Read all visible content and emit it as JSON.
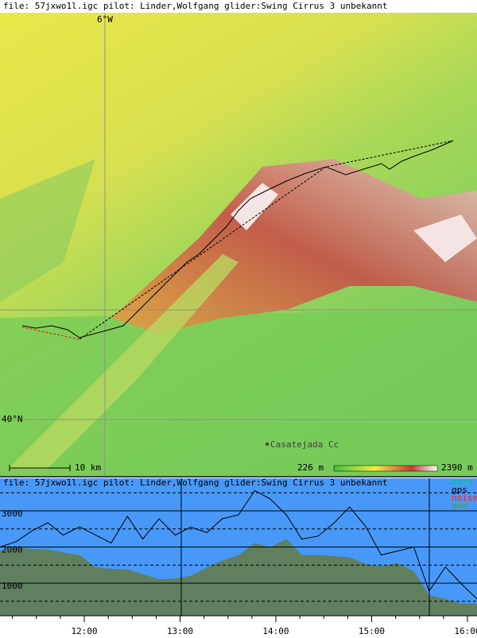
{
  "header": {
    "text": "file: 57jxwo1l.igc  pilot: Linder,Wolfgang glider:Swing Cirrus 3 unbekannt"
  },
  "map": {
    "lon_label": "6°W",
    "lat_label": "40°N",
    "place": "Casatejada Cc",
    "scale_label": "10 km",
    "elev_min": "226 m",
    "elev_max": "2390 m"
  },
  "chart_data": {
    "type": "line",
    "title": "file: 57jxwo1l.igc  pilot: Linder,Wolfgang glider:Swing Cirrus 3 unbekannt",
    "x": [
      11.12,
      11.29,
      11.45,
      11.62,
      11.78,
      11.95,
      12.12,
      12.28,
      12.45,
      12.61,
      12.78,
      12.95,
      13.11,
      13.28,
      13.44,
      13.61,
      13.78,
      13.94,
      14.11,
      14.27,
      14.44,
      14.61,
      14.77,
      14.94,
      15.1,
      15.27,
      15.44,
      15.6,
      15.77,
      15.93,
      16.1
    ],
    "series": [
      {
        "name": "baro",
        "color": "#000000",
        "legend_color": "#00c890",
        "values": [
          2000,
          2150,
          2440,
          2670,
          2330,
          2560,
          2330,
          2110,
          2850,
          2220,
          2780,
          2330,
          2550,
          2400,
          2780,
          2890,
          3560,
          3330,
          2890,
          2220,
          2300,
          2670,
          3110,
          2560,
          1780,
          1890,
          2000,
          780,
          1450,
          1000,
          560
        ]
      },
      {
        "name": "gps",
        "color": "#000000",
        "legend_color": "#000000",
        "values": [
          null,
          null,
          null,
          null,
          null,
          null,
          null,
          null,
          null,
          null,
          null,
          null,
          null,
          null,
          null,
          null,
          null,
          null,
          null,
          null,
          null,
          null,
          null,
          null,
          null,
          null,
          null,
          null,
          null,
          null,
          null
        ]
      },
      {
        "name": "noise",
        "color": "#ff0000",
        "legend_color": "#ff2020",
        "values": [
          null,
          null,
          null,
          null,
          null,
          null,
          null,
          null,
          null,
          null,
          null,
          null,
          null,
          null,
          null,
          null,
          null,
          null,
          null,
          null,
          null,
          null,
          null,
          null,
          null,
          null,
          null,
          null,
          null,
          null,
          null
        ]
      },
      {
        "name": "gnd",
        "color": "#5f7f5f",
        "legend_color": "#3fa03f",
        "area": true,
        "values": [
          1890,
          2000,
          1950,
          1930,
          1850,
          1780,
          1440,
          1400,
          1380,
          1250,
          1110,
          1130,
          1200,
          1440,
          1620,
          1780,
          2110,
          2000,
          2220,
          1780,
          1780,
          1750,
          1710,
          1530,
          1470,
          1560,
          1330,
          670,
          560,
          440,
          440
        ]
      }
    ],
    "xlim": [
      11.12,
      16.1
    ],
    "ylim": [
      100,
      3900
    ],
    "xticks": [
      {
        "value": 12,
        "label": "12:00"
      },
      {
        "value": 13,
        "label": "13:00"
      },
      {
        "value": 14,
        "label": "14:00"
      },
      {
        "value": 15,
        "label": "15:00"
      },
      {
        "value": 16,
        "label": "16:00"
      }
    ],
    "yticks": [
      1000,
      2000,
      3000
    ],
    "yticks_minor": [
      500,
      1500,
      2500,
      3500
    ],
    "background": "#4898f8",
    "grid": true
  }
}
